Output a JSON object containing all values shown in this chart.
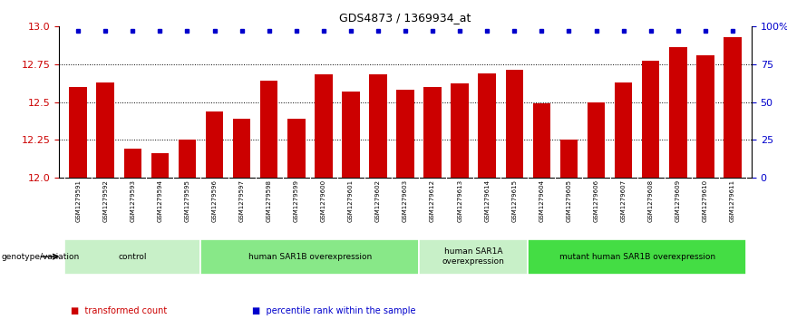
{
  "title": "GDS4873 / 1369934_at",
  "samples": [
    "GSM1279591",
    "GSM1279592",
    "GSM1279593",
    "GSM1279594",
    "GSM1279595",
    "GSM1279596",
    "GSM1279597",
    "GSM1279598",
    "GSM1279599",
    "GSM1279600",
    "GSM1279601",
    "GSM1279602",
    "GSM1279603",
    "GSM1279612",
    "GSM1279613",
    "GSM1279614",
    "GSM1279615",
    "GSM1279604",
    "GSM1279605",
    "GSM1279606",
    "GSM1279607",
    "GSM1279608",
    "GSM1279609",
    "GSM1279610",
    "GSM1279611"
  ],
  "bar_values": [
    12.6,
    12.63,
    12.19,
    12.16,
    12.25,
    12.44,
    12.39,
    12.64,
    12.39,
    12.68,
    12.57,
    12.68,
    12.58,
    12.6,
    12.62,
    12.69,
    12.71,
    12.49,
    12.25,
    12.5,
    12.63,
    12.77,
    12.86,
    12.81,
    12.93
  ],
  "ylim": [
    12.0,
    13.0
  ],
  "y_ticks_left": [
    12.0,
    12.25,
    12.5,
    12.75,
    13.0
  ],
  "y_ticks_right": [
    0,
    25,
    50,
    75,
    100
  ],
  "groups": [
    {
      "label": "control",
      "start": 0,
      "end": 4,
      "color": "#c8f0c8"
    },
    {
      "label": "human SAR1B overexpression",
      "start": 5,
      "end": 12,
      "color": "#88e888"
    },
    {
      "label": "human SAR1A\noverexpression",
      "start": 13,
      "end": 16,
      "color": "#c8f0c8"
    },
    {
      "label": "mutant human SAR1B overexpression",
      "start": 17,
      "end": 24,
      "color": "#44dd44"
    }
  ],
  "bar_color": "#cc0000",
  "dot_color": "#0000cc",
  "ylabel_left_color": "#cc0000",
  "ylabel_right_color": "#0000cc",
  "bg_color": "#ffffff",
  "xtick_bg": "#c8c8c8",
  "legend_items": [
    {
      "label": "transformed count",
      "color": "#cc0000"
    },
    {
      "label": "percentile rank within the sample",
      "color": "#0000cc"
    }
  ]
}
